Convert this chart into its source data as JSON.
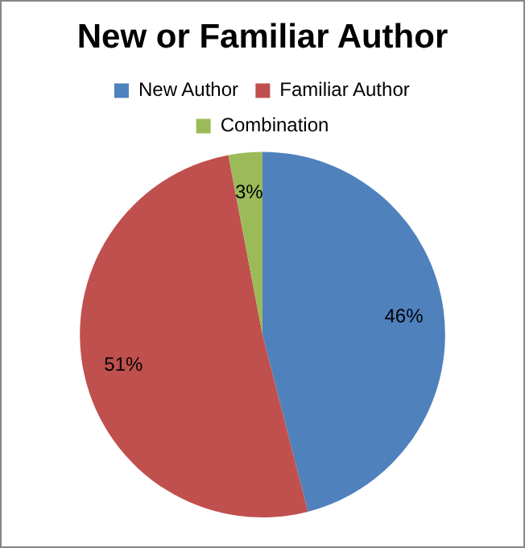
{
  "chart_data": {
    "type": "pie",
    "title": "New or Familiar Author",
    "categories": [
      "New Author",
      "Familiar Author",
      "Combination"
    ],
    "values": [
      46,
      51,
      3
    ],
    "colors": [
      "#4f81bd",
      "#c0504d",
      "#9bbb59"
    ],
    "value_labels": [
      "46%",
      "51%",
      "3%"
    ],
    "legend": "top"
  }
}
